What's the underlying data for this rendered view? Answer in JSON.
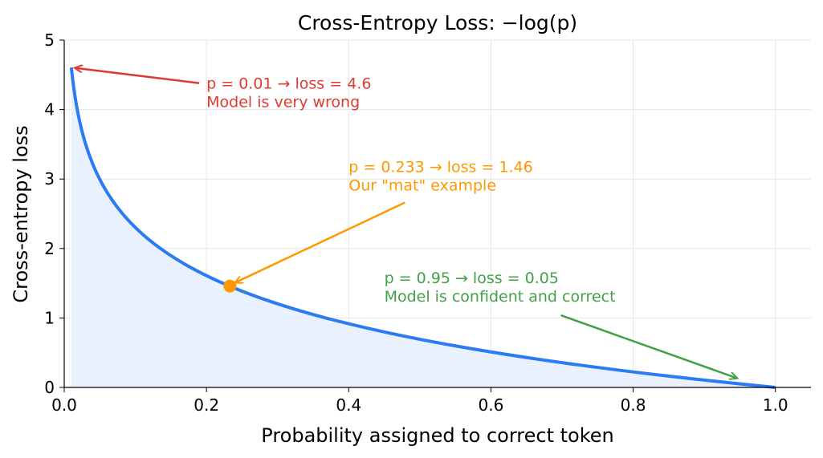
{
  "chart_data": {
    "type": "line",
    "title": "Cross-Entropy Loss: −log(p)",
    "xlabel": "Probability assigned to correct token",
    "ylabel": "Cross-entropy loss",
    "xlim": [
      0.0,
      1.05
    ],
    "ylim": [
      0,
      5
    ],
    "grid": true,
    "x_ticks": [
      "0.0",
      "0.2",
      "0.4",
      "0.6",
      "0.8",
      "1.0"
    ],
    "y_ticks": [
      "0",
      "1",
      "2",
      "3",
      "4",
      "5"
    ],
    "curve": {
      "function": "-ln(p)",
      "p_range": [
        0.01,
        1.0
      ],
      "color": "#2b7bf2",
      "fill_color": "#e9f1fe",
      "x": [
        0.01,
        0.02,
        0.05,
        0.1,
        0.15,
        0.2,
        0.233,
        0.3,
        0.4,
        0.5,
        0.6,
        0.7,
        0.8,
        0.9,
        0.95,
        1.0
      ],
      "y": [
        4.6,
        3.91,
        3.0,
        2.3,
        1.9,
        1.61,
        1.46,
        1.2,
        0.92,
        0.69,
        0.51,
        0.36,
        0.22,
        0.11,
        0.05,
        0.0
      ]
    },
    "highlight_point": {
      "x": 0.233,
      "y": 1.46,
      "color": "#ff9800"
    },
    "annotations": [
      {
        "lines": [
          "p = 0.01 → loss = 4.6",
          "Model is very wrong"
        ],
        "text_x": 0.2,
        "text_y": 4.3,
        "arrow_to": [
          0.01,
          4.6
        ],
        "color": "#e03b33"
      },
      {
        "lines": [
          "p = 0.233 → loss = 1.46",
          "Our \"mat\" example"
        ],
        "text_x": 0.4,
        "text_y": 3.1,
        "arrow_to": [
          0.233,
          1.46
        ],
        "color": "#ff9800"
      },
      {
        "lines": [
          "p = 0.95 → loss = 0.05",
          "Model is confident and correct"
        ],
        "text_x": 0.45,
        "text_y": 1.5,
        "arrow_to": [
          0.95,
          0.05
        ],
        "color": "#43a047"
      }
    ]
  }
}
